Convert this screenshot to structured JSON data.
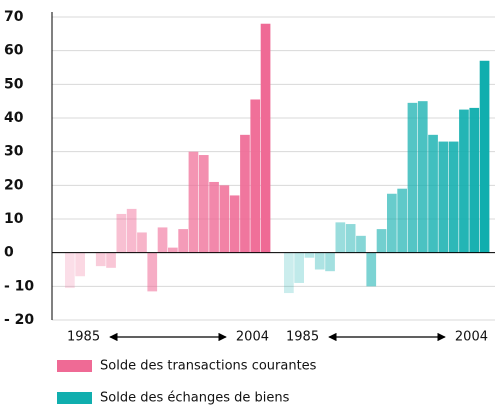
{
  "chart_data": {
    "type": "bar",
    "categories": [
      "1985",
      null,
      null,
      null,
      null,
      null,
      null,
      null,
      null,
      null,
      null,
      null,
      null,
      null,
      null,
      null,
      null,
      null,
      null,
      "2004"
    ],
    "series": [
      {
        "name": "Solde des transactions courantes",
        "color": "#ef6a95",
        "values": [
          -10.5,
          -7,
          0,
          -4,
          -4.5,
          11.5,
          13,
          6,
          -11.5,
          7.5,
          1.5,
          7,
          30,
          29,
          21,
          20,
          17,
          35,
          45.5,
          68
        ]
      },
      {
        "name": "Solde des échanges de biens",
        "color": "#10aeae",
        "values": [
          -12,
          -9,
          -1.5,
          -5,
          -5.5,
          9,
          8.5,
          5,
          -10,
          7,
          17.5,
          19,
          44.5,
          45,
          35,
          33,
          33,
          42.5,
          43,
          57
        ]
      }
    ],
    "ylim": [
      -20,
      70
    ],
    "yticks": [
      {
        "value": -20,
        "label": "- 20"
      },
      {
        "value": -10,
        "label": "- 10"
      },
      0,
      10,
      20,
      30,
      40,
      50,
      60,
      70
    ],
    "grid": true
  }
}
